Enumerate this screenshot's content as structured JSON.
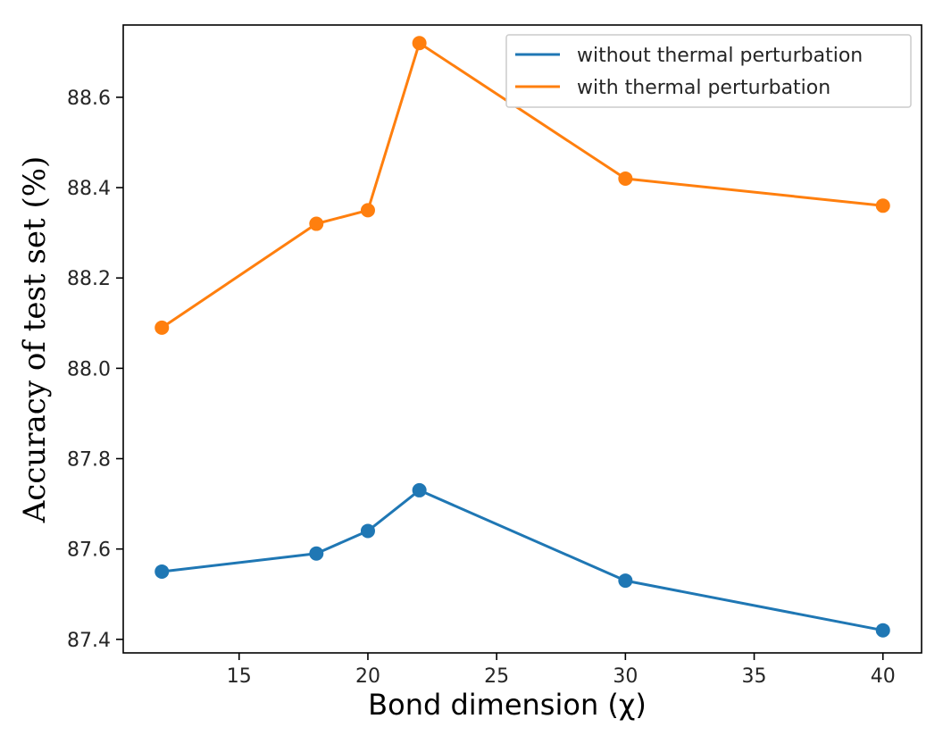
{
  "chart_data": {
    "type": "line",
    "xlabel": "Bond dimension (χ)",
    "ylabel": "Accuracy of test set (%)",
    "xlim": [
      10.5,
      41.5
    ],
    "ylim": [
      87.37,
      88.76
    ],
    "xticks": [
      15,
      20,
      25,
      30,
      35,
      40
    ],
    "xtick_labels": [
      "15",
      "20",
      "25",
      "30",
      "35",
      "40"
    ],
    "yticks": [
      87.4,
      87.6,
      87.8,
      88.0,
      88.2,
      88.4,
      88.6
    ],
    "ytick_labels": [
      "87.4",
      "87.6",
      "87.8",
      "88.0",
      "88.2",
      "88.4",
      "88.6"
    ],
    "grid": false,
    "legend_position": "top-right",
    "x": [
      12,
      18,
      20,
      22,
      30,
      40
    ],
    "series": [
      {
        "name": "without thermal perturbation",
        "color": "#1f77b4",
        "values": [
          87.55,
          87.59,
          87.64,
          87.73,
          87.53,
          87.42
        ]
      },
      {
        "name": "with thermal perturbation",
        "color": "#ff7f0e",
        "values": [
          88.09,
          88.32,
          88.35,
          88.72,
          88.42,
          88.36
        ]
      }
    ]
  }
}
